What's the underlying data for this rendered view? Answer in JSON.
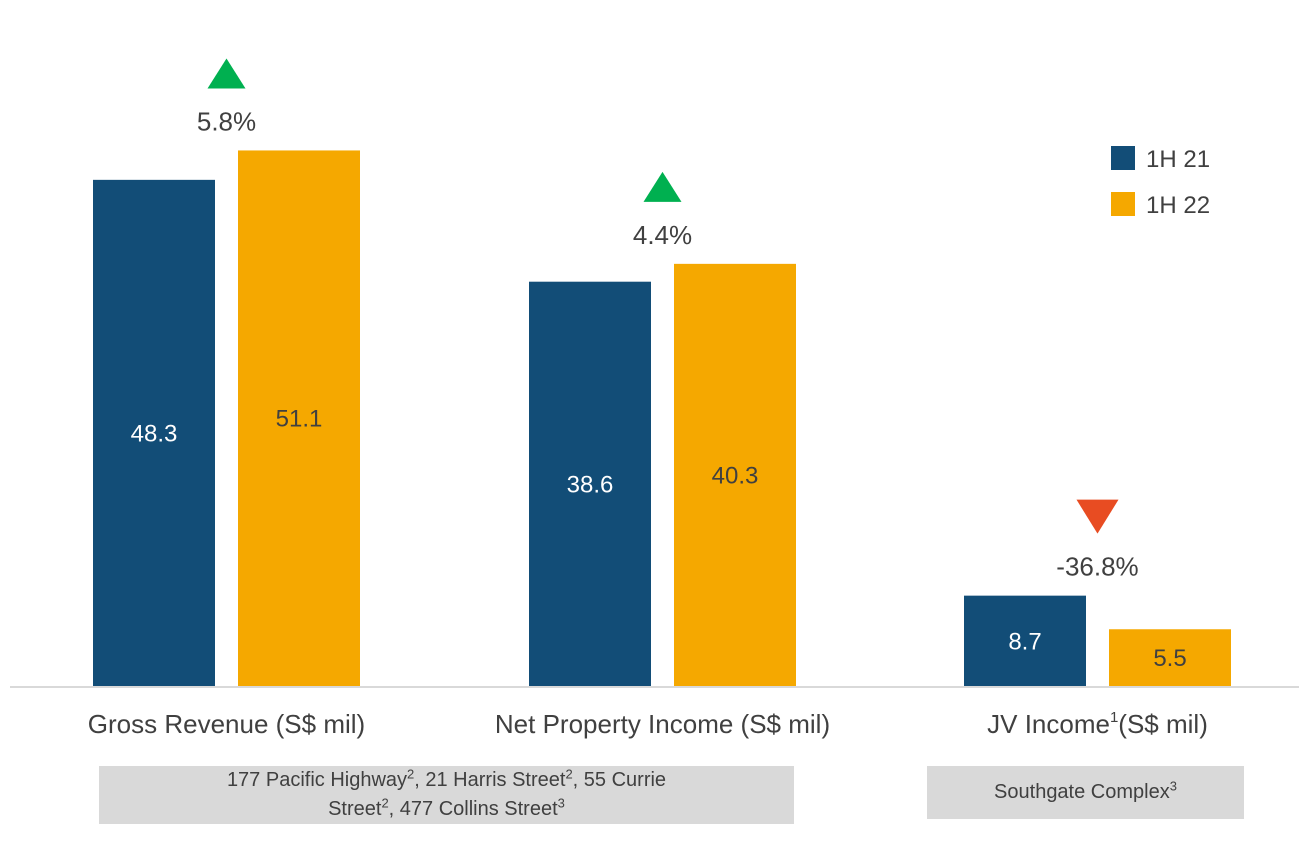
{
  "chart_data": {
    "type": "bar",
    "categories": [
      "Gross Revenue (S$ mil)",
      "Net Property Income (S$ mil)",
      "JV Income"
    ],
    "category_suffix": [
      "",
      "",
      "(S$ mil)"
    ],
    "category_superscript": [
      "",
      "",
      "1"
    ],
    "series": [
      {
        "name": "1H 21",
        "values": [
          48.3,
          38.6,
          8.7
        ],
        "color": "#124d77",
        "label_color": "#ffffff"
      },
      {
        "name": "1H 22",
        "values": [
          51.1,
          40.3,
          5.5
        ],
        "color": "#f5a800",
        "label_color": "#404040"
      }
    ],
    "changes": [
      {
        "label": "5.8%",
        "direction": "up",
        "color": "#00b050"
      },
      {
        "label": "4.4%",
        "direction": "up",
        "color": "#00b050"
      },
      {
        "label": "-36.8%",
        "direction": "down",
        "color": "#e84c22"
      }
    ],
    "ylim": [
      0,
      62
    ],
    "grid": false,
    "legend_position": "top-right",
    "xlabel": "",
    "ylabel": ""
  },
  "notes": {
    "left": {
      "line1_a": "177 Pacific Highway",
      "line1_a_sup": "2",
      "line1_b": ", 21 Harris Street",
      "line1_b_sup": "2",
      "line1_c": ", 55 Currie",
      "line2_a": "Street",
      "line2_a_sup": "2",
      "line2_b": ", 477 Collins Street",
      "line2_b_sup": "3"
    },
    "right": {
      "text": "Southgate Complex",
      "sup": "3"
    }
  }
}
